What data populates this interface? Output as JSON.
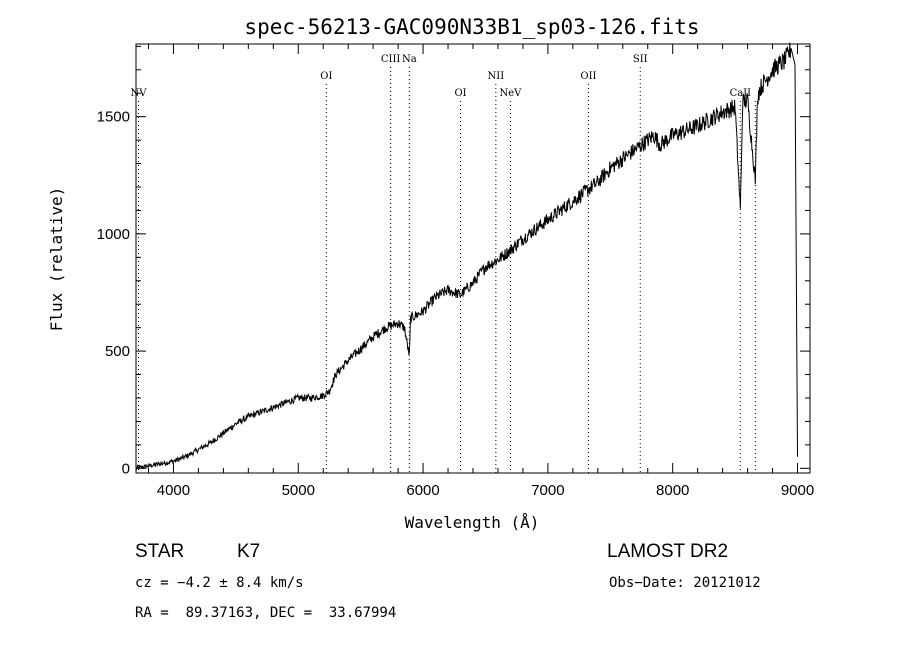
{
  "chart_data": {
    "type": "line",
    "title": "spec-56213-GAC090N33B1_sp03-126.fits",
    "xlabel": "Wavelength (Å)",
    "ylabel": "Flux (relative)",
    "xlim": [
      3700,
      9100
    ],
    "ylim": [
      -20,
      1810
    ],
    "x_ticks": [
      4000,
      5000,
      6000,
      7000,
      8000,
      9000
    ],
    "y_ticks": [
      0,
      500,
      1000,
      1500
    ],
    "grid": false,
    "series": [
      {
        "x": [
          3700,
          3800,
          3900,
          4000,
          4100,
          4200,
          4300,
          4400,
          4500,
          4600,
          4700,
          4800,
          4900,
          5000,
          5100,
          5200,
          5250,
          5300,
          5400,
          5500,
          5600,
          5700,
          5800,
          5850,
          5890,
          5900,
          6000,
          6100,
          6200,
          6300,
          6400,
          6500,
          6600,
          6700,
          6800,
          6900,
          7000,
          7100,
          7200,
          7300,
          7400,
          7500,
          7600,
          7700,
          7800,
          7850,
          7900,
          8000,
          8100,
          8200,
          8300,
          8400,
          8500,
          8542,
          8560,
          8600,
          8662,
          8680,
          8700,
          8800,
          8900,
          8950,
          8980,
          9000
        ],
        "y": [
          0,
          10,
          20,
          30,
          50,
          80,
          110,
          150,
          190,
          220,
          240,
          260,
          280,
          300,
          300,
          310,
          330,
          400,
          460,
          510,
          560,
          600,
          620,
          600,
          480,
          640,
          670,
          730,
          760,
          740,
          790,
          860,
          890,
          930,
          980,
          1020,
          1060,
          1100,
          1140,
          1180,
          1220,
          1280,
          1320,
          1360,
          1400,
          1420,
          1380,
          1420,
          1440,
          1460,
          1490,
          1520,
          1540,
          1100,
          1560,
          1570,
          1230,
          1590,
          1620,
          1700,
          1740,
          1790,
          1720,
          50
        ]
      }
    ],
    "line_markers": [
      {
        "label": "NV",
        "x": 3720,
        "row": 2
      },
      {
        "label": "OI",
        "x": 5225,
        "row": 1
      },
      {
        "label": "CIII",
        "x": 5740,
        "row": 0
      },
      {
        "label": "Na",
        "x": 5890,
        "row": 0
      },
      {
        "label": "OI",
        "x": 6300,
        "row": 2
      },
      {
        "label": "NII",
        "x": 6583,
        "row": 1
      },
      {
        "label": "NeV",
        "x": 6700,
        "row": 2
      },
      {
        "label": "OII",
        "x": 7325,
        "row": 1
      },
      {
        "label": "SII",
        "x": 7740,
        "row": 0
      },
      {
        "label": "CaII",
        "x": 8542,
        "row": 2
      },
      {
        "label": "",
        "x": 8662,
        "row": 2
      }
    ]
  },
  "info": {
    "object_class": "STAR",
    "subclass": "K7",
    "survey": "LAMOST DR2",
    "cz": "cz = −4.2 ± 8.4 km/s",
    "obs_date": "Obs−Date: 20121012",
    "coords": "RA =  89.37163, DEC =  33.67994"
  }
}
